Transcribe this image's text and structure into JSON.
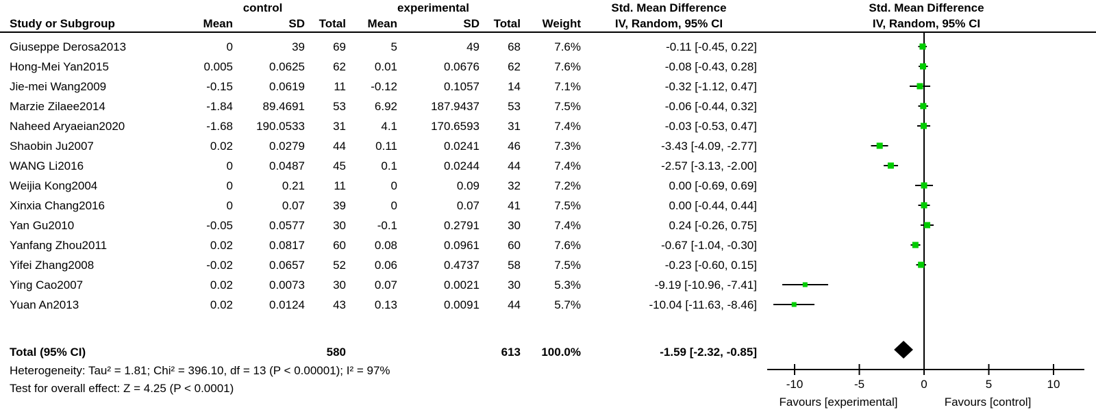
{
  "header": {
    "group1": "control",
    "group2": "experimental",
    "smd1": "Std. Mean Difference",
    "smd2": "Std. Mean Difference",
    "col_study": "Study or Subgroup",
    "col_mean1": "Mean",
    "col_sd1": "SD",
    "col_total1": "Total",
    "col_mean2": "Mean",
    "col_sd2": "SD",
    "col_total2": "Total",
    "col_weight": "Weight",
    "col_iv1": "IV, Random, 95% CI",
    "col_iv2": "IV, Random, 95% CI"
  },
  "studies": [
    {
      "name": "Giuseppe Derosa2013",
      "c_mean": "0",
      "c_sd": "39",
      "c_total": "69",
      "e_mean": "5",
      "e_sd": "49",
      "e_total": "68",
      "weight": "7.6%",
      "ci": "-0.11 [-0.45, 0.22]"
    },
    {
      "name": "Hong-Mei Yan2015",
      "c_mean": "0.005",
      "c_sd": "0.0625",
      "c_total": "62",
      "e_mean": "0.01",
      "e_sd": "0.0676",
      "e_total": "62",
      "weight": "7.6%",
      "ci": "-0.08 [-0.43, 0.28]"
    },
    {
      "name": "Jie-mei Wang2009",
      "c_mean": "-0.15",
      "c_sd": "0.0619",
      "c_total": "11",
      "e_mean": "-0.12",
      "e_sd": "0.1057",
      "e_total": "14",
      "weight": "7.1%",
      "ci": "-0.32 [-1.12, 0.47]"
    },
    {
      "name": "Marzie Zilaee2014",
      "c_mean": "-1.84",
      "c_sd": "89.4691",
      "c_total": "53",
      "e_mean": "6.92",
      "e_sd": "187.9437",
      "e_total": "53",
      "weight": "7.5%",
      "ci": "-0.06 [-0.44, 0.32]"
    },
    {
      "name": "Naheed Aryaeian2020",
      "c_mean": "-1.68",
      "c_sd": "190.0533",
      "c_total": "31",
      "e_mean": "4.1",
      "e_sd": "170.6593",
      "e_total": "31",
      "weight": "7.4%",
      "ci": "-0.03 [-0.53, 0.47]"
    },
    {
      "name": "Shaobin Ju2007",
      "c_mean": "0.02",
      "c_sd": "0.0279",
      "c_total": "44",
      "e_mean": "0.11",
      "e_sd": "0.0241",
      "e_total": "46",
      "weight": "7.3%",
      "ci": "-3.43 [-4.09, -2.77]"
    },
    {
      "name": "WANG Li2016",
      "c_mean": "0",
      "c_sd": "0.0487",
      "c_total": "45",
      "e_mean": "0.1",
      "e_sd": "0.0244",
      "e_total": "44",
      "weight": "7.4%",
      "ci": "-2.57 [-3.13, -2.00]"
    },
    {
      "name": "Weijia Kong2004",
      "c_mean": "0",
      "c_sd": "0.21",
      "c_total": "11",
      "e_mean": "0",
      "e_sd": "0.09",
      "e_total": "32",
      "weight": "7.2%",
      "ci": "0.00 [-0.69, 0.69]"
    },
    {
      "name": "Xinxia Chang2016",
      "c_mean": "0",
      "c_sd": "0.07",
      "c_total": "39",
      "e_mean": "0",
      "e_sd": "0.07",
      "e_total": "41",
      "weight": "7.5%",
      "ci": "0.00 [-0.44, 0.44]"
    },
    {
      "name": "Yan Gu2010",
      "c_mean": "-0.05",
      "c_sd": "0.0577",
      "c_total": "30",
      "e_mean": "-0.1",
      "e_sd": "0.2791",
      "e_total": "30",
      "weight": "7.4%",
      "ci": "0.24 [-0.26, 0.75]"
    },
    {
      "name": "Yanfang Zhou2011",
      "c_mean": "0.02",
      "c_sd": "0.0817",
      "c_total": "60",
      "e_mean": "0.08",
      "e_sd": "0.0961",
      "e_total": "60",
      "weight": "7.6%",
      "ci": "-0.67 [-1.04, -0.30]"
    },
    {
      "name": "Yifei Zhang2008",
      "c_mean": "-0.02",
      "c_sd": "0.0657",
      "c_total": "52",
      "e_mean": "0.06",
      "e_sd": "0.4737",
      "e_total": "58",
      "weight": "7.5%",
      "ci": "-0.23 [-0.60, 0.15]"
    },
    {
      "name": "Ying Cao2007",
      "c_mean": "0.02",
      "c_sd": "0.0073",
      "c_total": "30",
      "e_mean": "0.07",
      "e_sd": "0.0021",
      "e_total": "30",
      "weight": "5.3%",
      "ci": "-9.19 [-10.96, -7.41]"
    },
    {
      "name": "Yuan An2013",
      "c_mean": "0.02",
      "c_sd": "0.0124",
      "c_total": "43",
      "e_mean": "0.13",
      "e_sd": "0.0091",
      "e_total": "44",
      "weight": "5.7%",
      "ci": "-10.04 [-11.63, -8.46]"
    }
  ],
  "total": {
    "label": "Total (95% CI)",
    "c_total": "580",
    "e_total": "613",
    "weight": "100.0%",
    "ci": "-1.59 [-2.32, -0.85]"
  },
  "footer": {
    "heterogeneity": "Heterogeneity: Tau² = 1.81; Chi² = 396.10, df = 13 (P < 0.00001); I² = 97%",
    "test": "Test for overall effect: Z = 4.25 (P < 0.0001)"
  },
  "axis": {
    "ticks": [
      -10,
      -5,
      0,
      5,
      10
    ],
    "tick_labels": [
      "-10",
      "-5",
      "0",
      "5",
      "10"
    ],
    "favours_left": "Favours [experimental]",
    "favours_right": "Favours [control]"
  },
  "colors": {
    "marker_green": "#00cc00",
    "line_black": "#000000",
    "diamond_black": "#000000"
  },
  "chart_data": {
    "type": "scatter",
    "subtype": "forest-plot",
    "title": "Std. Mean Difference  IV, Random, 95% CI",
    "xlim": [
      -12,
      12.3
    ],
    "x_ticks": [
      -10,
      -5,
      0,
      5,
      10
    ],
    "xlabel_left": "Favours [experimental]",
    "xlabel_right": "Favours [control]",
    "grid": false,
    "studies": [
      {
        "name": "Giuseppe Derosa2013",
        "est": -0.11,
        "ci": [
          -0.45,
          0.22
        ],
        "weight_pct": 7.6
      },
      {
        "name": "Hong-Mei Yan2015",
        "est": -0.08,
        "ci": [
          -0.43,
          0.28
        ],
        "weight_pct": 7.6
      },
      {
        "name": "Jie-mei Wang2009",
        "est": -0.32,
        "ci": [
          -1.12,
          0.47
        ],
        "weight_pct": 7.1
      },
      {
        "name": "Marzie Zilaee2014",
        "est": -0.06,
        "ci": [
          -0.44,
          0.32
        ],
        "weight_pct": 7.5
      },
      {
        "name": "Naheed Aryaeian2020",
        "est": -0.03,
        "ci": [
          -0.53,
          0.47
        ],
        "weight_pct": 7.4
      },
      {
        "name": "Shaobin Ju2007",
        "est": -3.43,
        "ci": [
          -4.09,
          -2.77
        ],
        "weight_pct": 7.3
      },
      {
        "name": "WANG Li2016",
        "est": -2.57,
        "ci": [
          -3.13,
          -2.0
        ],
        "weight_pct": 7.4
      },
      {
        "name": "Weijia Kong2004",
        "est": 0.0,
        "ci": [
          -0.69,
          0.69
        ],
        "weight_pct": 7.2
      },
      {
        "name": "Xinxia Chang2016",
        "est": 0.0,
        "ci": [
          -0.44,
          0.44
        ],
        "weight_pct": 7.5
      },
      {
        "name": "Yan Gu2010",
        "est": 0.24,
        "ci": [
          -0.26,
          0.75
        ],
        "weight_pct": 7.4
      },
      {
        "name": "Yanfang Zhou2011",
        "est": -0.67,
        "ci": [
          -1.04,
          -0.3
        ],
        "weight_pct": 7.6
      },
      {
        "name": "Yifei Zhang2008",
        "est": -0.23,
        "ci": [
          -0.6,
          0.15
        ],
        "weight_pct": 7.5
      },
      {
        "name": "Ying Cao2007",
        "est": -9.19,
        "ci": [
          -10.96,
          -7.41
        ],
        "weight_pct": 5.3
      },
      {
        "name": "Yuan An2013",
        "est": -10.04,
        "ci": [
          -11.63,
          -8.46
        ],
        "weight_pct": 5.7
      }
    ],
    "overall": {
      "name": "Total (95% CI)",
      "est": -1.59,
      "ci": [
        -2.32,
        -0.85
      ],
      "weight_pct": 100.0
    },
    "heterogeneity": {
      "tau2": 1.81,
      "chi2": 396.1,
      "df": 13,
      "p": "< 0.00001",
      "i2_pct": 97
    },
    "overall_effect": {
      "z": 4.25,
      "p": "< 0.0001"
    }
  }
}
